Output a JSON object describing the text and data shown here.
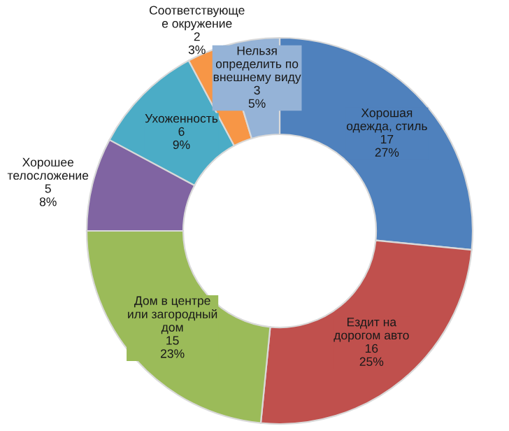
{
  "chart_data": {
    "type": "donut",
    "categories": [
      "Хорошая\nодежда, стиль",
      "Ездит на\nдорогом авто",
      "Дом в центре\nили загородный\nдом",
      "Хорошее\nтелосложение",
      "Ухоженность",
      "Соответствующе\nе окружение",
      "Нельзя\nопределить по\nвнешнему виду"
    ],
    "values": [
      17,
      16,
      15,
      5,
      6,
      2,
      3
    ],
    "value_labels": [
      "17\n27%",
      "16\n25%",
      "15\n23%",
      "5\n8%",
      "6\n9%",
      "2\n3%",
      "3\n5%"
    ],
    "colors": [
      "#4f81bd",
      "#c0504d",
      "#9bbb59",
      "#8064a2",
      "#4bacc6",
      "#f79646",
      "#95b3d7"
    ],
    "legend": false
  }
}
